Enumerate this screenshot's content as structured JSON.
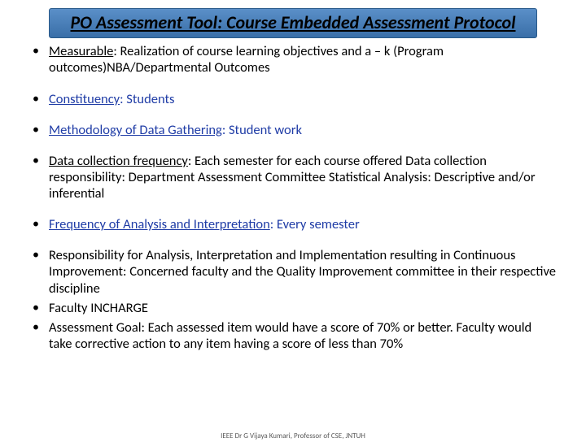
{
  "slide": {
    "title": "PO Assessment Tool: Course Embedded Assessment Protocol",
    "title_color": "#000000",
    "title_bg_gradient_top": "#5a8fc8",
    "title_bg_gradient_bottom": "#3a6fa8",
    "title_fontsize": 22,
    "body_fontsize": 16.5,
    "bullet_color": "#000000",
    "link_blue": "#1f3ca6",
    "background": "#ffffff",
    "bullets": [
      {
        "label": "Measurable",
        "rest": ": Realization of course learning objectives and a – k  (Program outcomes)NBA/Departmental Outcomes",
        "blue": false
      },
      {
        "label": "Constituency",
        "rest": ": Students",
        "blue": true
      },
      {
        "label": "Methodology of Data Gathering",
        "rest": ": Student work",
        "blue": true
      },
      {
        "label": "Data collection frequency",
        "rest": ": Each semester for each course offered Data collection responsibility: Department Assessment Committee Statistical Analysis: Descriptive and/or inferential",
        "blue": false
      },
      {
        "label": "Frequency of Analysis and Interpretation",
        "rest": ": Every semester",
        "blue": true
      },
      {
        "label": "",
        "rest": "Responsibility for Analysis, Interpretation and Implementation resulting in Continuous Improvement: Concerned faculty and the Quality Improvement committee in their respective discipline",
        "blue": false
      },
      {
        "label": "",
        "rest": "Faculty INCHARGE",
        "blue": false
      },
      {
        "label": "",
        "rest": "Assessment Goal: Each assessed item would have a score of 70% or better. Faculty would take corrective action to any item having a score of less than 70%",
        "blue": false
      }
    ],
    "footer": "IEEE  Dr G Vijaya Kumari, Professor of CSE, JNTUH"
  }
}
